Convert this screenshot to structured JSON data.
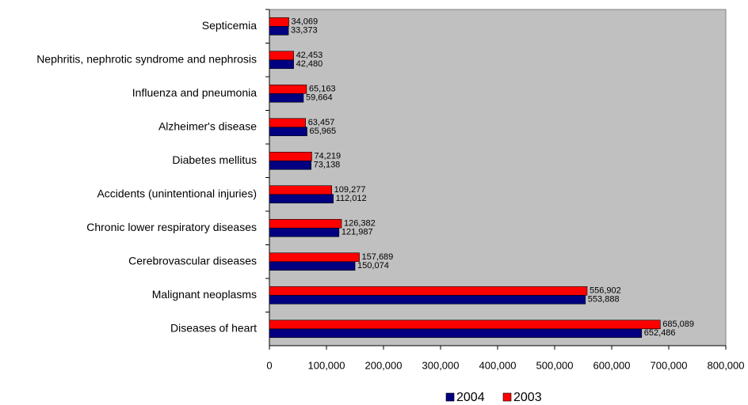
{
  "chart_data": {
    "type": "bar",
    "orientation": "horizontal",
    "categories": [
      "Septicemia",
      "Nephritis, nephrotic syndrome and nephrosis",
      "Influenza and pneumonia",
      "Alzheimer's disease",
      "Diabetes mellitus",
      "Accidents (unintentional injuries)",
      "Chronic lower respiratory diseases",
      "Cerebrovascular diseases",
      "Malignant neoplasms",
      "Diseases of heart"
    ],
    "series": [
      {
        "name": "2004",
        "color": "#000080",
        "values": [
          33373,
          42480,
          59664,
          65965,
          73138,
          112012,
          121987,
          150074,
          553888,
          652486
        ],
        "value_labels": [
          "33,373",
          "42,480",
          "59,664",
          "65,965",
          "73,138",
          "112,012",
          "121,987",
          "150,074",
          "553,888",
          "652,486"
        ]
      },
      {
        "name": "2003",
        "color": "#ff0000",
        "values": [
          34069,
          42453,
          65163,
          63457,
          74219,
          109277,
          126382,
          157689,
          556902,
          685089
        ],
        "value_labels": [
          "34,069",
          "42,453",
          "65,163",
          "63,457",
          "74,219",
          "109,277",
          "126,382",
          "157,689",
          "556,902",
          "685,089"
        ]
      }
    ],
    "xlim": [
      0,
      800000
    ],
    "xticks": [
      0,
      {
        "value": 100000,
        "label": "100,000"
      },
      {
        "value": 200000,
        "label": "200,000"
      },
      {
        "value": 300000,
        "label": "300,000"
      },
      {
        "value": 400000,
        "label": "400,000"
      },
      {
        "value": 500000,
        "label": "500,000"
      },
      {
        "value": 600000,
        "label": "600,000"
      },
      {
        "value": 700000,
        "label": "700,000"
      },
      {
        "value": 800000,
        "label": "800,000"
      }
    ],
    "legend": "bottom",
    "grid": false,
    "plot_background": "#c0c0c0"
  }
}
